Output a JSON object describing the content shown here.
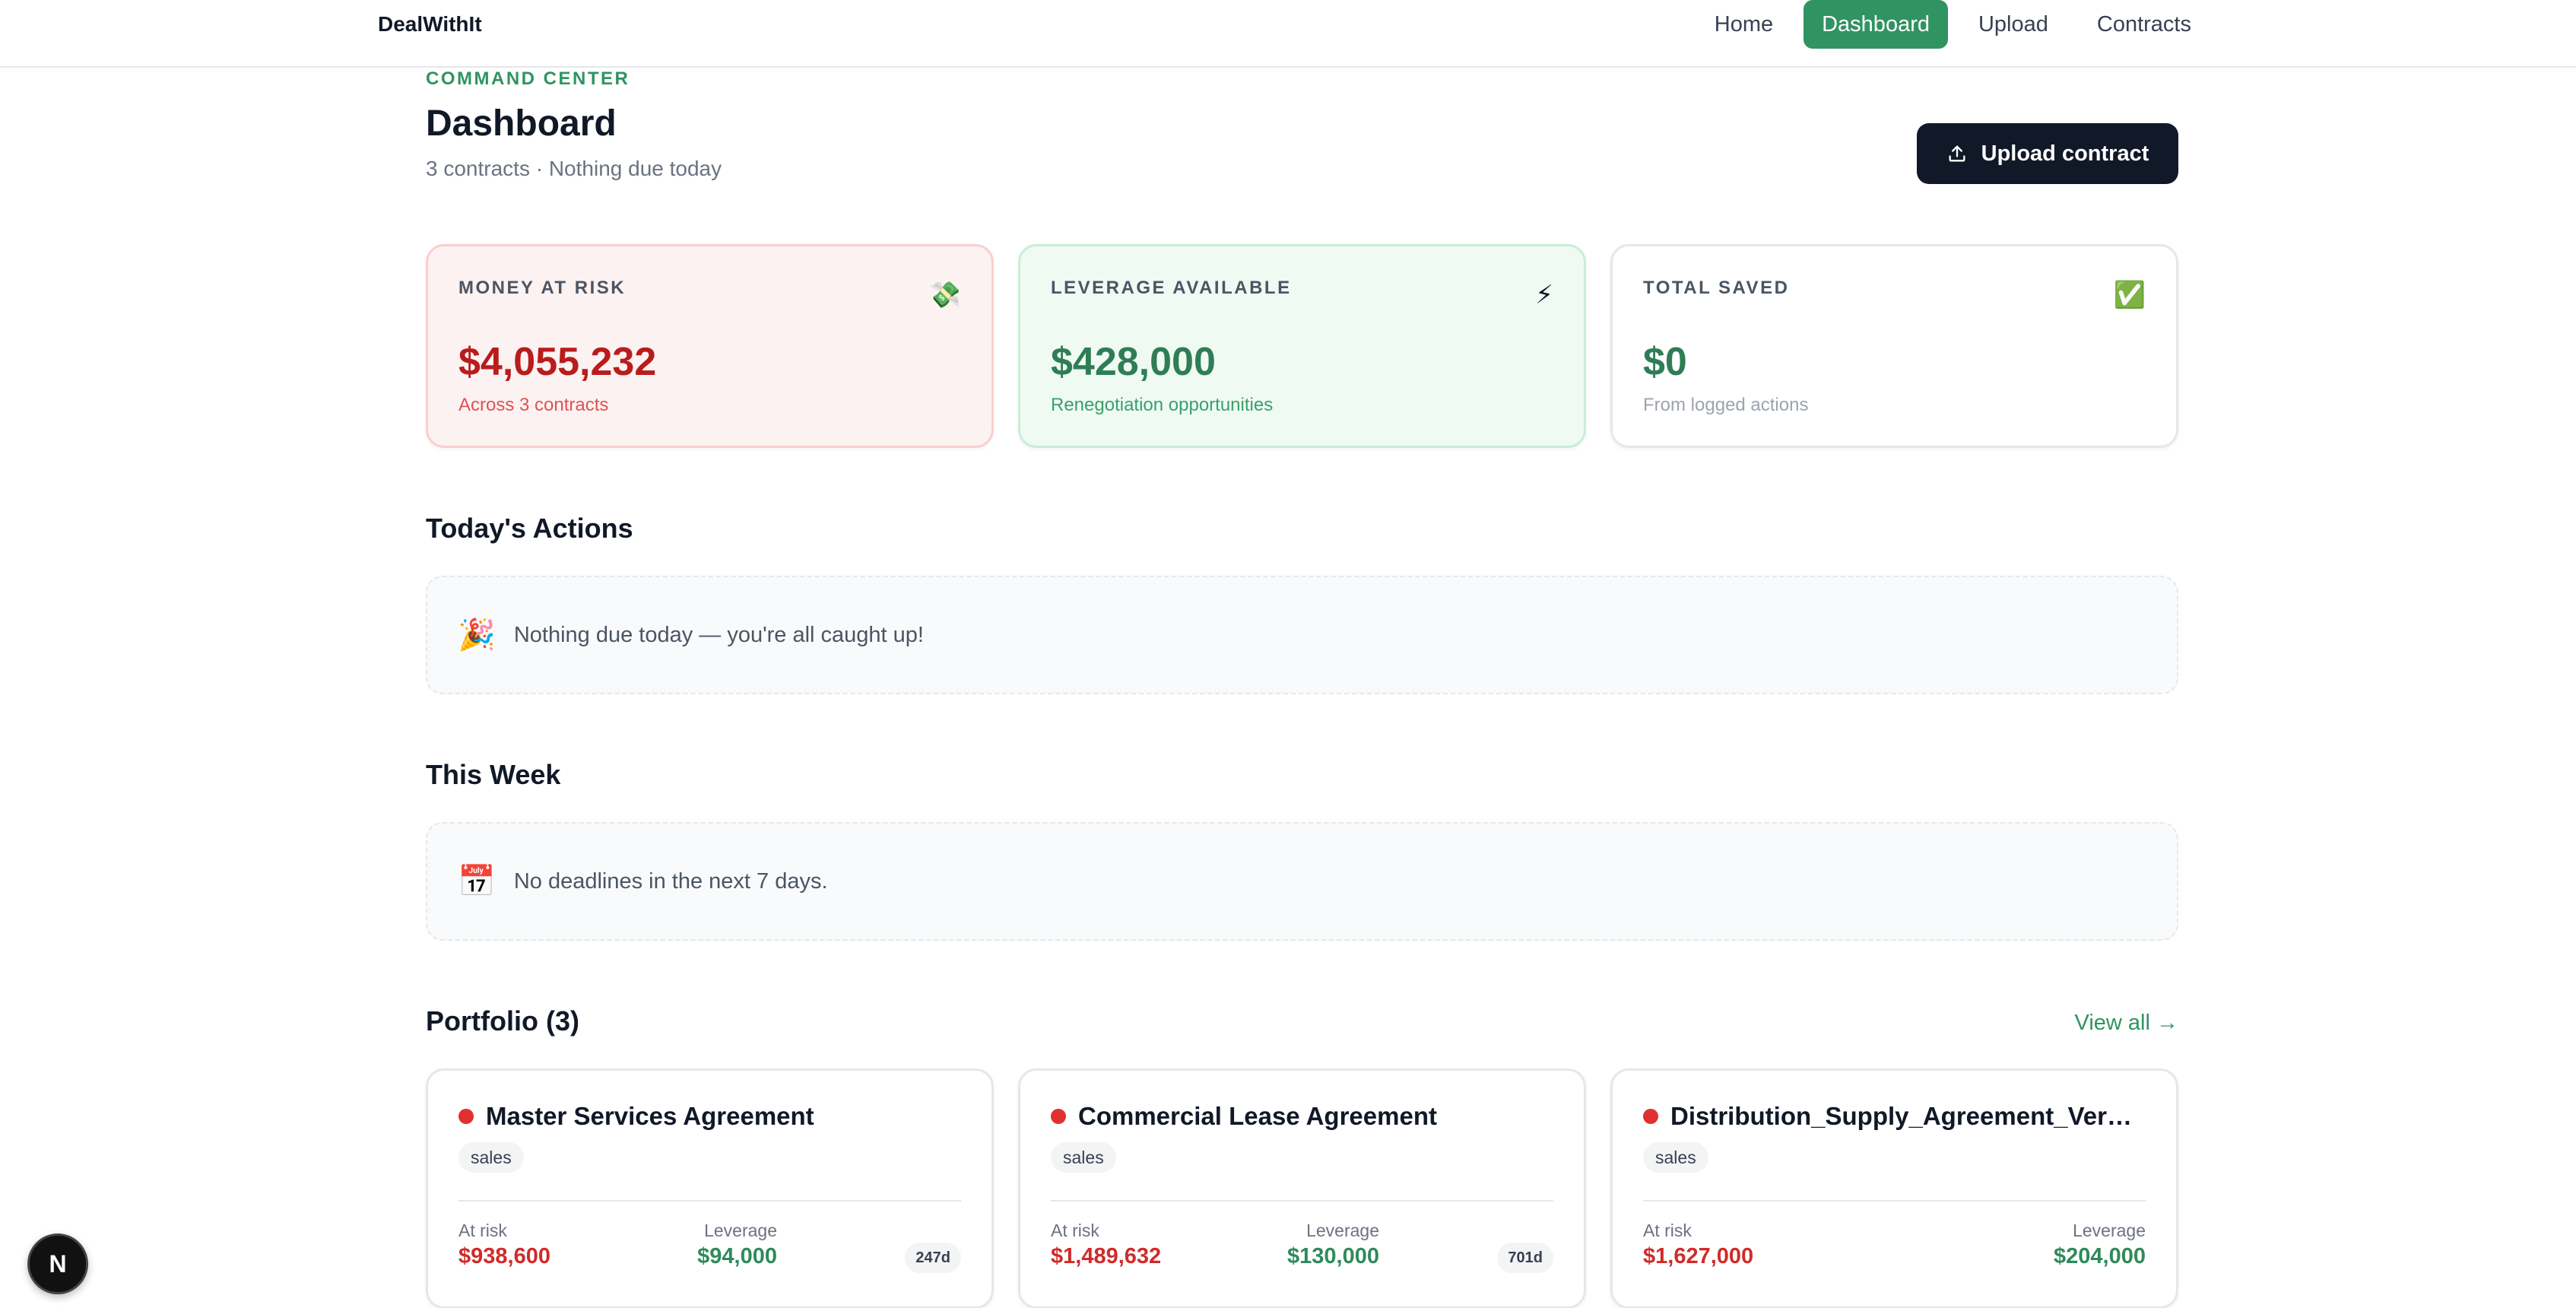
{
  "brand": "DealWithIt",
  "nav": {
    "items": [
      {
        "label": "Home",
        "active": false
      },
      {
        "label": "Dashboard",
        "active": true
      },
      {
        "label": "Upload",
        "active": false
      },
      {
        "label": "Contracts",
        "active": false
      }
    ]
  },
  "header": {
    "eyebrow": "COMMAND CENTER",
    "title": "Dashboard",
    "subtitle": "3 contracts · Nothing due today",
    "upload_label": "Upload contract"
  },
  "kpis": {
    "risk": {
      "label": "MONEY AT RISK",
      "icon": "💸",
      "value": "$4,055,232",
      "caption": "Across 3 contracts"
    },
    "leverage": {
      "label": "LEVERAGE AVAILABLE",
      "icon": "⚡",
      "value": "$428,000",
      "caption": "Renegotiation opportunities"
    },
    "saved": {
      "label": "TOTAL SAVED",
      "icon": "✅",
      "value": "$0",
      "caption": "From logged actions"
    }
  },
  "today": {
    "title": "Today's Actions",
    "icon": "🎉",
    "message": "Nothing due today — you're all caught up!"
  },
  "week": {
    "title": "This Week",
    "icon": "📅",
    "message": "No deadlines in the next 7 days."
  },
  "portfolio": {
    "title": "Portfolio (3)",
    "view_all": "View all →",
    "cards": [
      {
        "title": "Master Services Agreement",
        "tag": "sales",
        "risk_label": "At risk",
        "risk_value": "$938,600",
        "lev_label": "Leverage",
        "lev_value": "$94,000",
        "days": "247d"
      },
      {
        "title": "Commercial Lease Agreement",
        "tag": "sales",
        "risk_label": "At risk",
        "risk_value": "$1,489,632",
        "lev_label": "Leverage",
        "lev_value": "$130,000",
        "days": "701d"
      },
      {
        "title": "Distribution_Supply_Agreement_Verda...",
        "tag": "sales",
        "risk_label": "At risk",
        "risk_value": "$1,627,000",
        "lev_label": "Leverage",
        "lev_value": "$204,000",
        "days": ""
      }
    ]
  },
  "fab_label": "N",
  "colors": {
    "accent": "#2f9461",
    "danger": "#d12a2a",
    "dark": "#111827"
  }
}
